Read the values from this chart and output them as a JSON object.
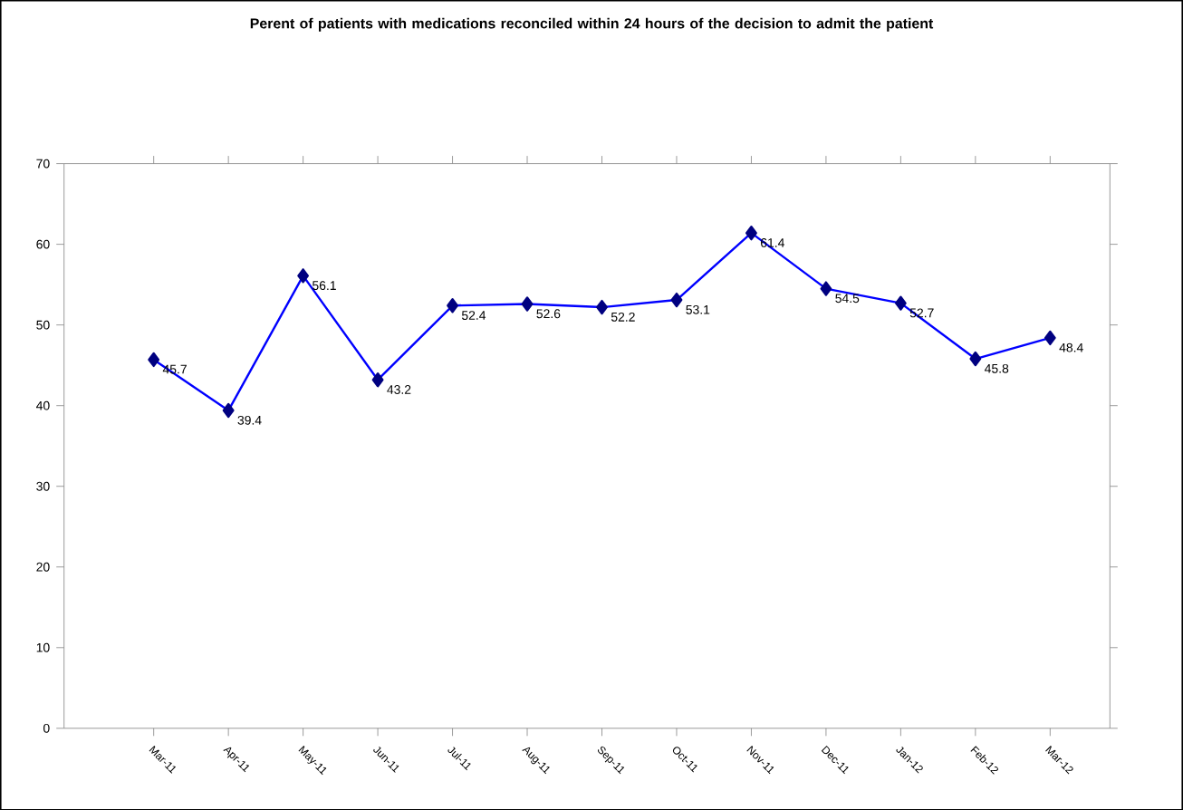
{
  "chart_data": {
    "type": "line",
    "title": "Perent of patients with medications reconciled within 24 hours of the decision to admit the patient",
    "categories": [
      "Mar-11",
      "Apr-11",
      "May-11",
      "Jun-11",
      "Jul-11",
      "Aug-11",
      "Sep-11",
      "Oct-11",
      "Nov-11",
      "Dec-11",
      "Jan-12",
      "Feb-12",
      "Mar-12"
    ],
    "values": [
      45.7,
      39.4,
      56.1,
      43.2,
      52.4,
      52.6,
      52.2,
      53.1,
      61.4,
      54.5,
      52.7,
      45.8,
      48.4
    ],
    "color": "#0000ff",
    "marker": "diamond",
    "line_style": "solid",
    "data_labels": true,
    "ylim": [
      0,
      70
    ],
    "yticks": [
      0,
      10,
      20,
      30,
      40,
      50,
      60,
      70
    ],
    "grid": false
  }
}
